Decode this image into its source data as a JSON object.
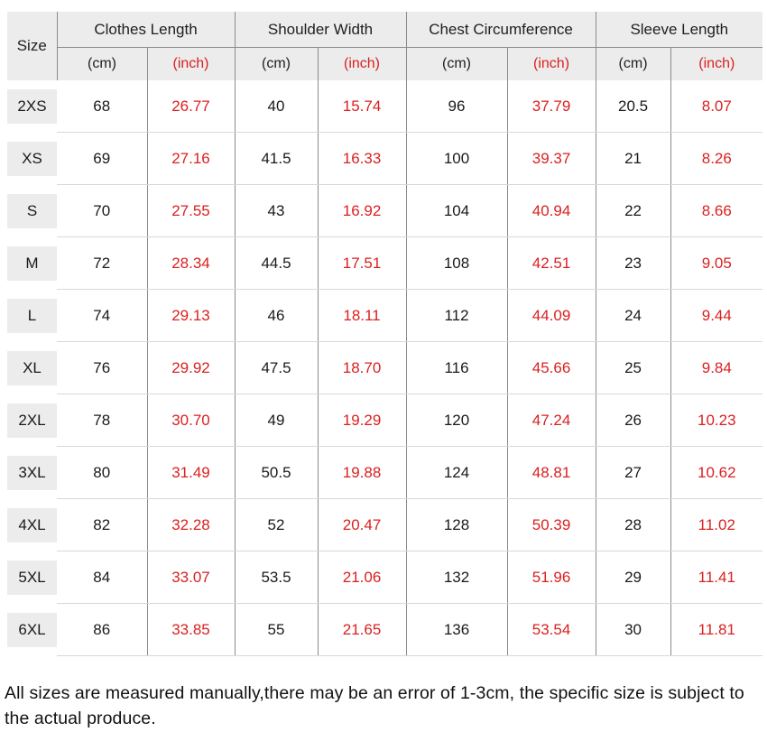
{
  "table": {
    "size_header": "Size",
    "groups": [
      "Clothes Length",
      "Shoulder Width",
      "Chest Circumference",
      "Sleeve Length"
    ],
    "units": {
      "cm": "(cm)",
      "inch": "(inch)"
    },
    "rows": [
      {
        "size": "2XS",
        "values": [
          "68",
          "26.77",
          "40",
          "15.74",
          "96",
          "37.79",
          "20.5",
          "8.07"
        ]
      },
      {
        "size": "XS",
        "values": [
          "69",
          "27.16",
          "41.5",
          "16.33",
          "100",
          "39.37",
          "21",
          "8.26"
        ]
      },
      {
        "size": "S",
        "values": [
          "70",
          "27.55",
          "43",
          "16.92",
          "104",
          "40.94",
          "22",
          "8.66"
        ]
      },
      {
        "size": "M",
        "values": [
          "72",
          "28.34",
          "44.5",
          "17.51",
          "108",
          "42.51",
          "23",
          "9.05"
        ]
      },
      {
        "size": "L",
        "values": [
          "74",
          "29.13",
          "46",
          "18.11",
          "112",
          "44.09",
          "24",
          "9.44"
        ]
      },
      {
        "size": "XL",
        "values": [
          "76",
          "29.92",
          "47.5",
          "18.70",
          "116",
          "45.66",
          "25",
          "9.84"
        ]
      },
      {
        "size": "2XL",
        "values": [
          "78",
          "30.70",
          "49",
          "19.29",
          "120",
          "47.24",
          "26",
          "10.23"
        ]
      },
      {
        "size": "3XL",
        "values": [
          "80",
          "31.49",
          "50.5",
          "19.88",
          "124",
          "48.81",
          "27",
          "10.62"
        ]
      },
      {
        "size": "4XL",
        "values": [
          "82",
          "32.28",
          "52",
          "20.47",
          "128",
          "50.39",
          "28",
          "11.02"
        ]
      },
      {
        "size": "5XL",
        "values": [
          "84",
          "33.07",
          "53.5",
          "21.06",
          "132",
          "51.96",
          "29",
          "11.41"
        ]
      },
      {
        "size": "6XL",
        "values": [
          "86",
          "33.85",
          "55",
          "21.65",
          "136",
          "53.54",
          "30",
          "11.81"
        ]
      }
    ]
  },
  "footer_note": "All sizes are measured manually,there may be an error of 1-3cm, the specific size is subject to the actual produce.",
  "colors": {
    "header_bg": "#ececec",
    "grid_line": "#8b8b8b",
    "row_separator": "#d8d8d8",
    "inch_red": "#db2020",
    "text": "#1a1a1a"
  },
  "chart_data": {
    "type": "table",
    "title": "Garment size chart",
    "columns": [
      "Size",
      "Clothes Length (cm)",
      "Clothes Length (inch)",
      "Shoulder Width (cm)",
      "Shoulder Width (inch)",
      "Chest Circumference (cm)",
      "Chest Circumference (inch)",
      "Sleeve Length (cm)",
      "Sleeve Length (inch)"
    ],
    "rows": [
      [
        "2XS",
        68,
        26.77,
        40,
        15.74,
        96,
        37.79,
        20.5,
        8.07
      ],
      [
        "XS",
        69,
        27.16,
        41.5,
        16.33,
        100,
        39.37,
        21,
        8.26
      ],
      [
        "S",
        70,
        27.55,
        43,
        16.92,
        104,
        40.94,
        22,
        8.66
      ],
      [
        "M",
        72,
        28.34,
        44.5,
        17.51,
        108,
        42.51,
        23,
        9.05
      ],
      [
        "L",
        74,
        29.13,
        46,
        18.11,
        112,
        44.09,
        24,
        9.44
      ],
      [
        "XL",
        76,
        29.92,
        47.5,
        18.7,
        116,
        45.66,
        25,
        9.84
      ],
      [
        "2XL",
        78,
        30.7,
        49,
        19.29,
        120,
        47.24,
        26,
        10.23
      ],
      [
        "3XL",
        80,
        31.49,
        50.5,
        19.88,
        124,
        48.81,
        27,
        10.62
      ],
      [
        "4XL",
        82,
        32.28,
        52,
        20.47,
        128,
        50.39,
        28,
        11.02
      ],
      [
        "5XL",
        84,
        33.07,
        53.5,
        21.06,
        132,
        51.96,
        29,
        11.41
      ],
      [
        "6XL",
        86,
        33.85,
        55,
        21.65,
        136,
        53.54,
        30,
        11.81
      ]
    ],
    "annotation": "All sizes are measured manually,there may be an error of 1-3cm, the specific size is subject to the actual produce."
  }
}
